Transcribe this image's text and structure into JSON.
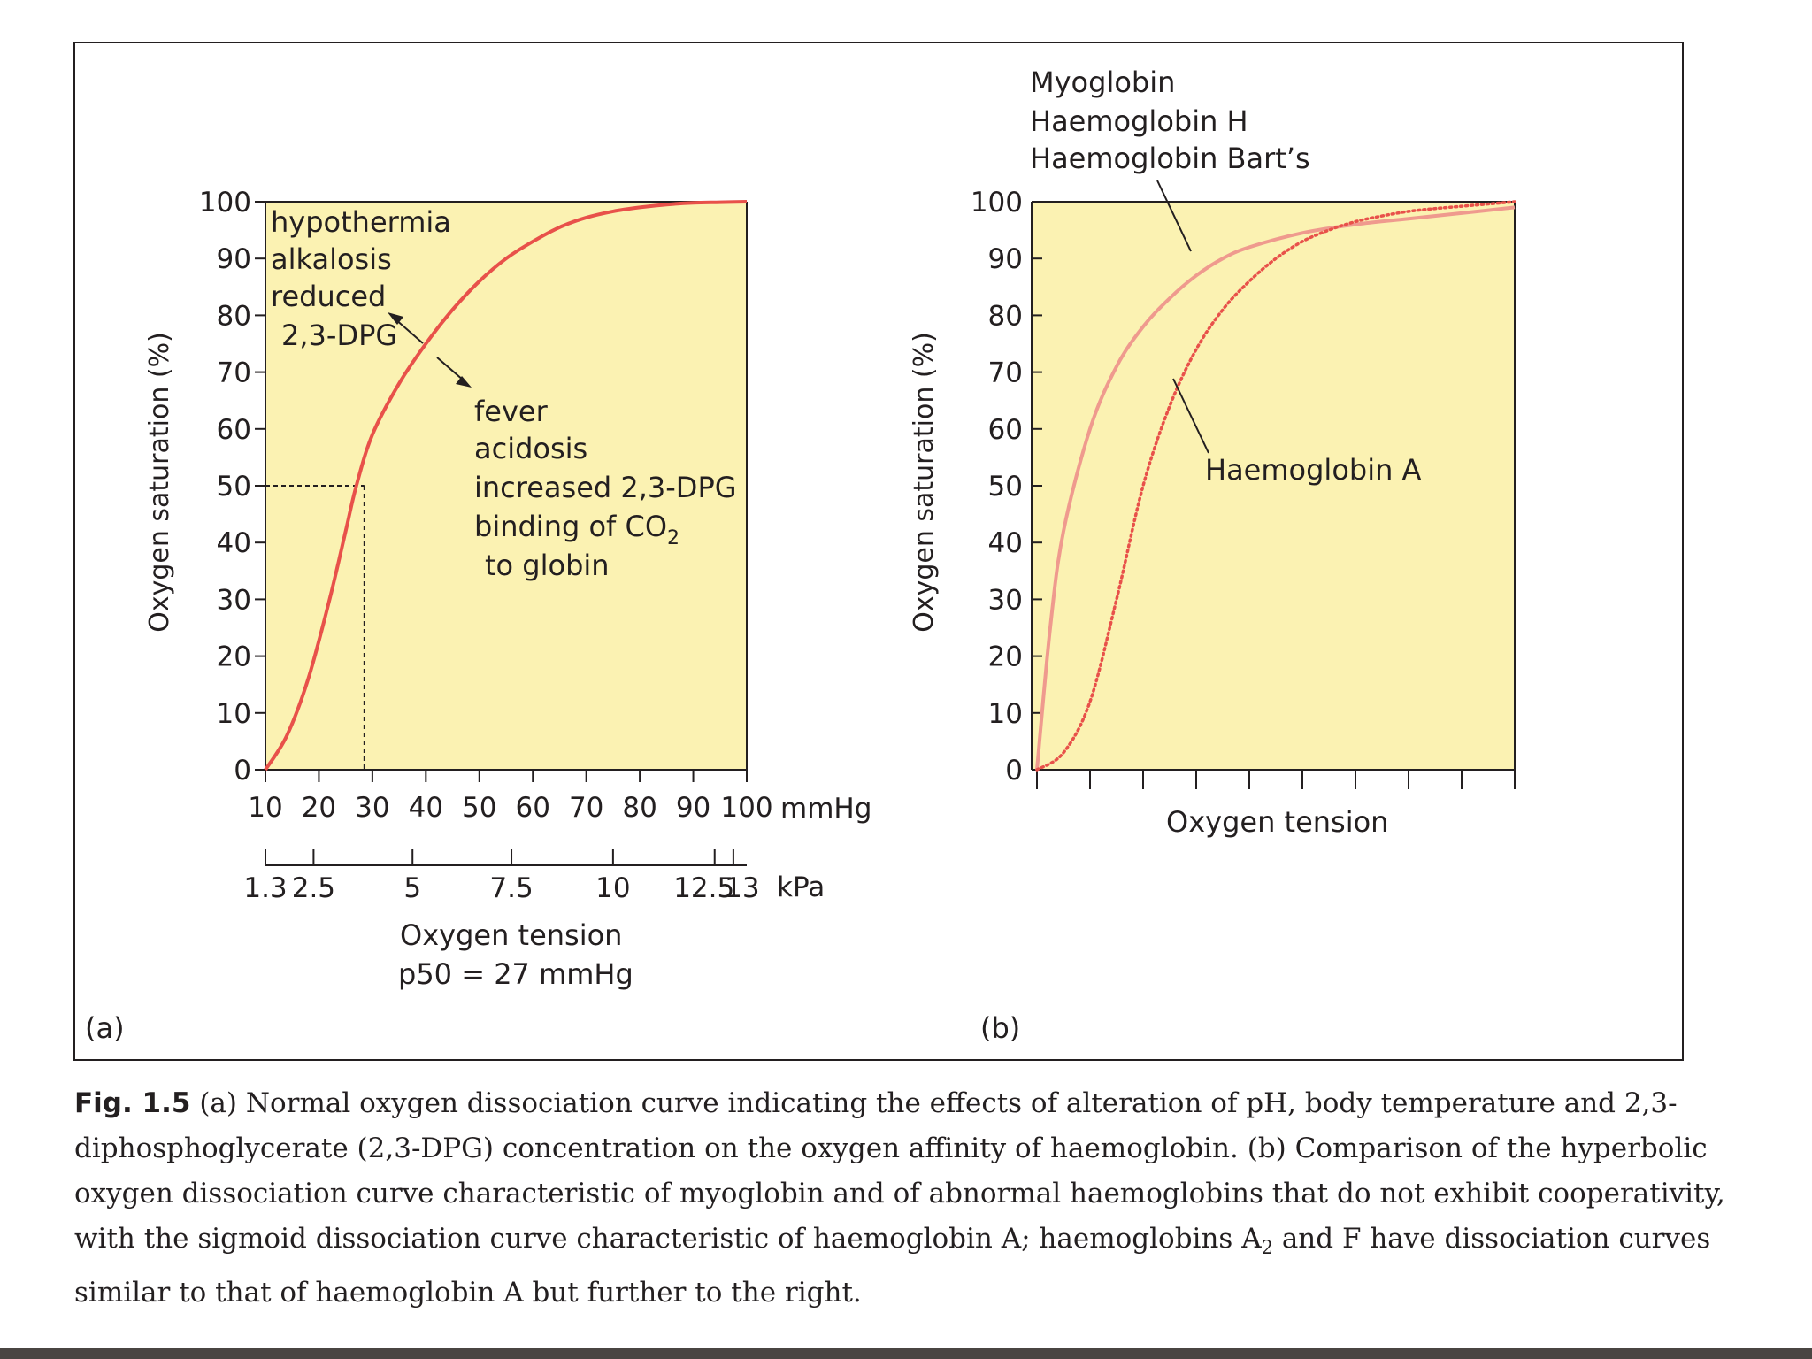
{
  "chart_data": [
    {
      "panel": "(a)",
      "type": "line",
      "ylabel": "Oxygen saturation (%)",
      "xlabel": "Oxygen tension",
      "subtitle": "p50 = 27 mmHg",
      "ylim": [
        0,
        100
      ],
      "xlim": [
        10,
        100
      ],
      "y_ticks": [
        "0",
        "10",
        "20",
        "30",
        "40",
        "50",
        "60",
        "70",
        "80",
        "90",
        "100"
      ],
      "x_ticks_mmHg": [
        "10",
        "20",
        "30",
        "40",
        "50",
        "60",
        "70",
        "80",
        "90",
        "100"
      ],
      "x_unit_mmHg": "mmHg",
      "x_ticks_kPa": [
        {
          "label": "1.3",
          "mmHg": 10
        },
        {
          "label": "2.5",
          "mmHg": 19
        },
        {
          "label": "5",
          "mmHg": 37.5
        },
        {
          "label": "7.5",
          "mmHg": 56
        },
        {
          "label": "10",
          "mmHg": 75
        },
        {
          "label": "12.5",
          "mmHg": 94
        },
        {
          "label": "13",
          "mmHg": 97.5
        }
      ],
      "x_unit_kPa": "kPa",
      "p50_mmHg": 27,
      "p50_sat": 50,
      "series": [
        {
          "color": "#e8514a",
          "x": [
            10,
            14,
            18,
            22,
            25,
            27,
            30,
            35,
            40,
            45,
            50,
            55,
            60,
            65,
            70,
            75,
            80,
            85,
            90,
            95,
            100
          ],
          "y": [
            0,
            6,
            16,
            30,
            42,
            50,
            59,
            68,
            75,
            81,
            86,
            90,
            93,
            95.5,
            97.2,
            98.3,
            99,
            99.5,
            99.8,
            99.9,
            100
          ]
        }
      ],
      "annotations": {
        "left_shift": [
          "hypothermia",
          "alkalosis",
          "reduced",
          "2,3-DPG"
        ],
        "right_shift": [
          "fever",
          "acidosis",
          "increased 2,3-DPG",
          "binding of CO",
          "to globin"
        ],
        "right_shift_subscript": "2"
      }
    },
    {
      "panel": "(b)",
      "type": "line",
      "ylabel": "Oxygen saturation (%)",
      "xlabel": "Oxygen tension",
      "ylim": [
        0,
        100
      ],
      "y_ticks": [
        "0",
        "10",
        "20",
        "30",
        "40",
        "50",
        "60",
        "70",
        "80",
        "90",
        "100"
      ],
      "x_tick_count": 9,
      "series": [
        {
          "name_lines": [
            "Myoglobin",
            "Haemoglobin H",
            "Haemoglobin Bart’s"
          ],
          "style": "solid",
          "color": "#ef9a8e",
          "x": [
            0,
            0.25,
            0.5,
            1,
            1.5,
            2,
            2.5,
            3,
            3.5,
            4,
            5,
            6,
            7,
            8,
            9
          ],
          "y": [
            0,
            25,
            42,
            60,
            71,
            78,
            83,
            87,
            90,
            92,
            94.5,
            96,
            97,
            98,
            99
          ]
        },
        {
          "name": "Haemoglobin A",
          "style": "dotted",
          "color": "#e8514a",
          "x": [
            0,
            0.5,
            1,
            1.5,
            2,
            2.5,
            3,
            3.5,
            4,
            4.5,
            5,
            5.5,
            6,
            6.5,
            7,
            7.5,
            8,
            8.5,
            9
          ],
          "y": [
            0,
            3,
            12,
            30,
            50,
            64,
            74,
            81,
            86,
            90,
            93,
            95,
            96.5,
            97.5,
            98.3,
            98.8,
            99.2,
            99.6,
            100
          ]
        }
      ]
    }
  ],
  "caption": {
    "label": "Fig. 1.5",
    "lines": [
      " (a) Normal oxygen dissociation curve indicating the effects of alteration of pH, body temperature and 2,3-",
      "diphosphoglycerate (2,3-DPG) concentration on the oxygen affinity of haemoglobin. (b) Comparison of the hyperbolic",
      "oxygen dissociation curve characteristic of myoglobin and of abnormal haemoglobins that do not exhibit cooperativity,",
      "with the sigmoid dissociation curve characteristic of haemoglobin A; haemoglobins A"
    ],
    "line4_subscript": "2",
    "line4_rest": " and F have dissociation curves",
    "line5": "similar to that of haemoglobin A but further to the right."
  },
  "colors": {
    "plot_bg": "#fbf2b2",
    "curve": "#e8514a",
    "curve_light": "#ef9a8e",
    "text": "#231f20"
  }
}
